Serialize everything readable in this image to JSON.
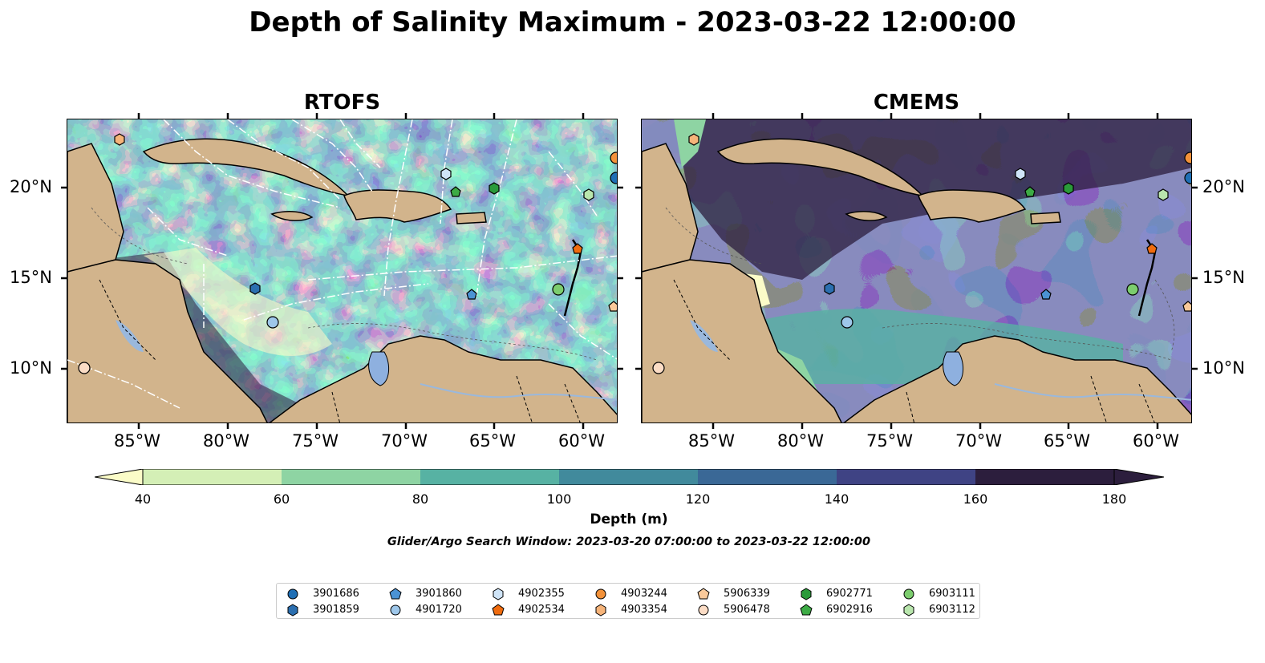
{
  "title": "Depth of Salinity Maximum - 2023-03-22 12:00:00",
  "panels": [
    {
      "title": "RTOFS"
    },
    {
      "title": "CMEMS"
    }
  ],
  "lon_ticks": [
    "85°W",
    "80°W",
    "75°W",
    "70°W",
    "65°W",
    "60°W"
  ],
  "lat_ticks": [
    "20°N",
    "15°N",
    "10°N"
  ],
  "colorbar": {
    "label": "Depth (m)",
    "ticks": [
      "40",
      "60",
      "80",
      "100",
      "120",
      "140",
      "160",
      "180"
    ],
    "colors": [
      "#fbfcc8",
      "#d4efb6",
      "#8ed4a3",
      "#57b2a3",
      "#418a9c",
      "#3a6896",
      "#3f4384",
      "#2c1e3d"
    ]
  },
  "search_window": "Glider/Argo Search Window: 2023-03-20 07:00:00 to 2023-03-22 12:00:00",
  "legend": [
    {
      "id": "3901686",
      "marker": "circle",
      "color": "#1f6fb5"
    },
    {
      "id": "3901859",
      "marker": "hexagon",
      "color": "#2b6fb0"
    },
    {
      "id": "3901860",
      "marker": "pentagon",
      "color": "#4b93d4"
    },
    {
      "id": "4901720",
      "marker": "circle",
      "color": "#9ec7ea"
    },
    {
      "id": "4902355",
      "marker": "hexagon",
      "color": "#cfe4f7"
    },
    {
      "id": "4902534",
      "marker": "pentagon",
      "color": "#f06c0f"
    },
    {
      "id": "4903244",
      "marker": "circle",
      "color": "#f3923a"
    },
    {
      "id": "4903354",
      "marker": "hexagon",
      "color": "#f6b47a"
    },
    {
      "id": "5906339",
      "marker": "pentagon",
      "color": "#f9c99a"
    },
    {
      "id": "5906478",
      "marker": "circle",
      "color": "#fbdcc5"
    },
    {
      "id": "6902771",
      "marker": "hexagon",
      "color": "#2a9a3a"
    },
    {
      "id": "6902916",
      "marker": "pentagon",
      "color": "#3dab45"
    },
    {
      "id": "6903111",
      "marker": "circle",
      "color": "#7ccd6e"
    },
    {
      "id": "6903112",
      "marker": "hexagon",
      "color": "#b9e6ad"
    }
  ],
  "map_colors": {
    "land": "#d2b48c",
    "lake": "#8eb0df",
    "river": "#9ab8dc"
  }
}
